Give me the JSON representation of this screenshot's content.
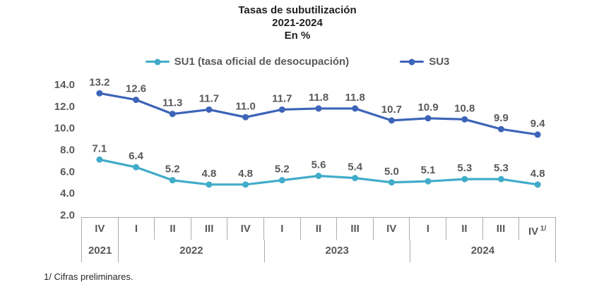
{
  "title": {
    "line1": "Tasas de subutilización",
    "line2": "2021-2024",
    "line3": "En %"
  },
  "footnote": "1/ Cifras preliminares.",
  "colors": {
    "su1": "#41acc9",
    "su3": "#3d64b8",
    "label_gray": "#595959",
    "axis_border": "#ababab"
  },
  "chart_data": {
    "type": "line",
    "title": "Tasas de subutilización 2021-2024 En %",
    "xlabel": "",
    "ylabel": "",
    "categories": [
      "IV",
      "I",
      "II",
      "III",
      "IV",
      "I",
      "II",
      "III",
      "IV",
      "I",
      "II",
      "III",
      "IV"
    ],
    "last_category_sup": "1/",
    "year_groups": [
      {
        "label": "2021",
        "span": 1
      },
      {
        "label": "2022",
        "span": 4
      },
      {
        "label": "2023",
        "span": 4
      },
      {
        "label": "2024",
        "span": 4
      }
    ],
    "series": [
      {
        "name": "SU1 (tasa oficial de desocupación)",
        "color": "#41acc9",
        "values": [
          7.1,
          6.4,
          5.2,
          4.8,
          4.8,
          5.2,
          5.6,
          5.4,
          5.0,
          5.1,
          5.3,
          5.3,
          4.8
        ]
      },
      {
        "name": "SU3",
        "color": "#3d64b8",
        "values": [
          13.2,
          12.6,
          11.3,
          11.7,
          11.0,
          11.7,
          11.8,
          11.8,
          10.7,
          10.9,
          10.8,
          9.9,
          9.4
        ]
      }
    ],
    "y_ticks": [
      14.0,
      12.0,
      10.0,
      8.0,
      6.0,
      4.0,
      2.0
    ],
    "ylim": [
      2.0,
      14.0
    ],
    "grid": false,
    "legend_position": "top",
    "data_labels": true
  }
}
